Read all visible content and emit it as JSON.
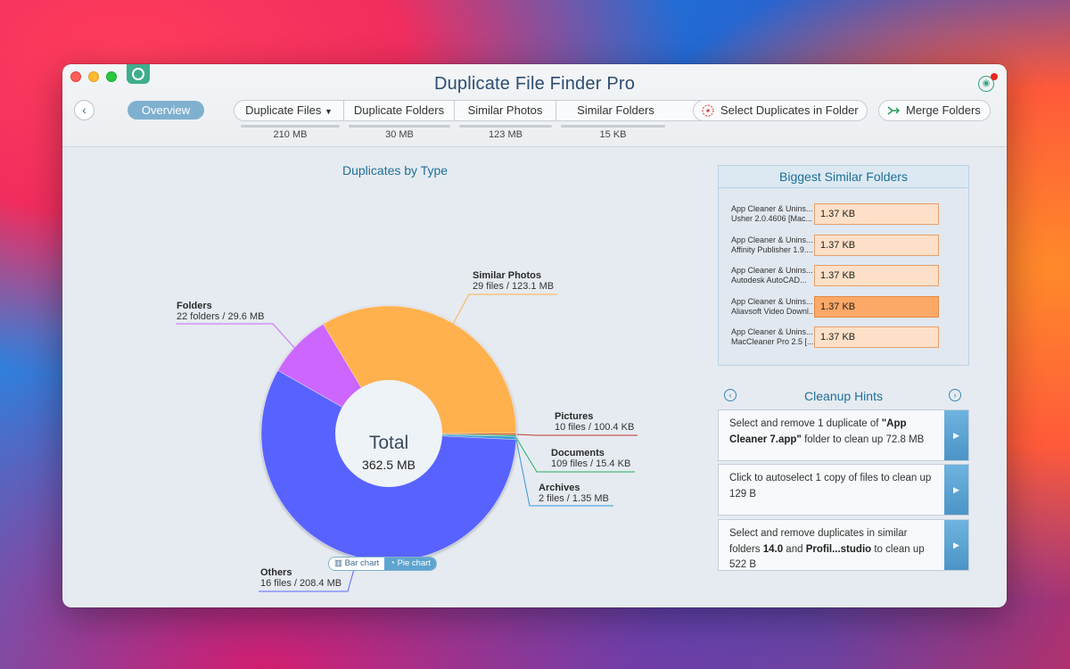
{
  "window": {
    "title": "Duplicate File Finder Pro"
  },
  "toolbar": {
    "overview_label": "Overview",
    "tabs": [
      {
        "label": "Duplicate Files",
        "size": "210 MB"
      },
      {
        "label": "Duplicate Folders",
        "size": "30 MB"
      },
      {
        "label": "Similar Photos",
        "size": "123 MB"
      },
      {
        "label": "Similar Folders",
        "size": "15 KB"
      }
    ],
    "select_duplicates_label": "Select Duplicates in Folder",
    "merge_folders_label": "Merge Folders"
  },
  "chart": {
    "title": "Duplicates by Type",
    "center_title": "Total",
    "center_value": "362.5 MB",
    "toggle_bar": "Bar chart",
    "toggle_pie": "Pie chart"
  },
  "chart_data": {
    "type": "pie",
    "title": "Duplicates by Type",
    "categories": [
      "Similar Photos",
      "Pictures",
      "Documents",
      "Archives",
      "Others",
      "Folders"
    ],
    "values": [
      123.1,
      0.1004,
      0.0154,
      1.35,
      208.4,
      29.6
    ],
    "units": "MB",
    "details": [
      "29 files / 123.1 MB",
      "10 files / 100.4 KB",
      "109 files / 15.4 KB",
      "2 files / 1.35 MB",
      "16 files / 208.4 MB",
      "22 folders / 29.6 MB"
    ],
    "colors": [
      "#ffb14e",
      "#c0392b",
      "#27ae60",
      "#3498db",
      "#5864ff",
      "#cc66ff"
    ]
  },
  "labels": {
    "similar_photos": {
      "name": "Similar Photos",
      "detail": "29 files / 123.1 MB"
    },
    "folders": {
      "name": "Folders",
      "detail": "22 folders / 29.6 MB"
    },
    "pictures": {
      "name": "Pictures",
      "detail": "10 files / 100.4 KB"
    },
    "documents": {
      "name": "Documents",
      "detail": "109 files / 15.4 KB"
    },
    "archives": {
      "name": "Archives",
      "detail": "2 files / 1.35 MB"
    },
    "others": {
      "name": "Others",
      "detail": "16 files / 208.4 MB"
    }
  },
  "biggest_folders": {
    "title": "Biggest Similar Folders",
    "rows": [
      {
        "line1": "App Cleaner & Unins...",
        "line2": "Usher 2.0.4606 [Mac...",
        "size": "1.37 KB"
      },
      {
        "line1": "App Cleaner & Unins...",
        "line2": "Affinity Publisher 1.9....",
        "size": "1.37 KB"
      },
      {
        "line1": "App Cleaner & Unins...",
        "line2": "Autodesk AutoCAD...",
        "size": "1.37 KB"
      },
      {
        "line1": "App Cleaner & Unins...",
        "line2": "Aliavsoft Video Downl...",
        "size": "1.37 KB"
      },
      {
        "line1": "App Cleaner & Unins...",
        "line2": "MacCleaner Pro 2.5 [...",
        "size": "1.37 KB"
      }
    ]
  },
  "hints": {
    "title": "Cleanup Hints",
    "h1": {
      "pre": "Select and remove 1 duplicate of ",
      "bold": "\"App Cleaner 7.app\"",
      "post": " folder to clean up 72.8 MB"
    },
    "h2": {
      "text": "Click to autoselect 1 copy of files to clean up 129 B"
    },
    "h3": {
      "pre": "Select and remove duplicates in similar folders ",
      "bold1": "14.0",
      "mid": " and ",
      "bold2": "Profil...studio",
      "post": " to clean up 522 B"
    }
  }
}
